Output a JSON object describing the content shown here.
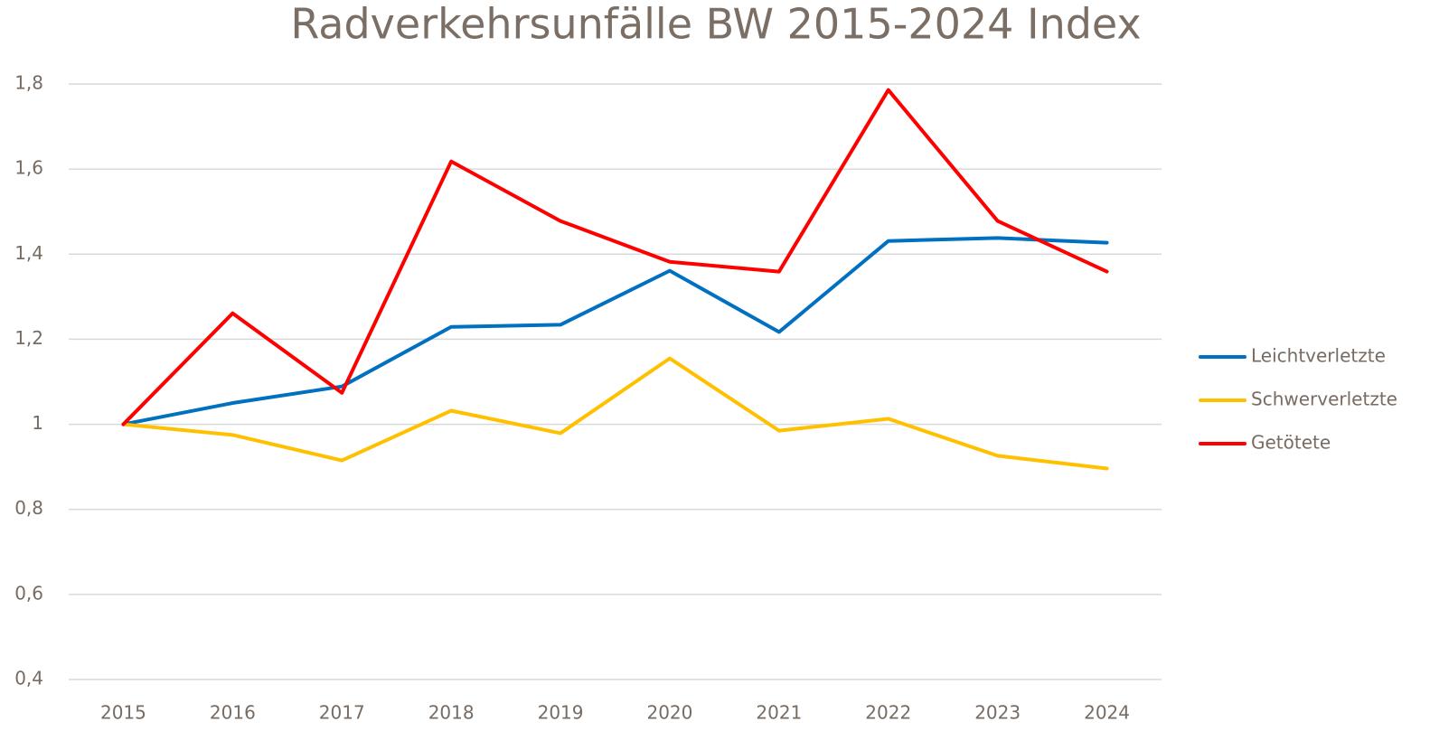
{
  "chart_data": {
    "type": "line",
    "title": "Radverkehrsunfälle BW 2015-2024 Index",
    "categories": [
      "2015",
      "2016",
      "2017",
      "2018",
      "2019",
      "2020",
      "2021",
      "2022",
      "2023",
      "2024"
    ],
    "series": [
      {
        "name": "Leichtverletzte",
        "color": "#0070c0",
        "values": [
          1.0,
          1.05,
          1.089,
          1.229,
          1.234,
          1.361,
          1.217,
          1.431,
          1.438,
          1.427
        ]
      },
      {
        "name": "Schwerverletzte",
        "color": "#ffc000",
        "values": [
          1.0,
          0.975,
          0.915,
          1.032,
          0.979,
          1.155,
          0.985,
          1.013,
          0.926,
          0.896
        ]
      },
      {
        "name": "Getötete",
        "color": "#ff0000",
        "values": [
          1.0,
          1.261,
          1.074,
          1.618,
          1.478,
          1.382,
          1.359,
          1.786,
          1.478,
          1.359
        ]
      }
    ],
    "ylim": [
      0.4,
      1.8
    ],
    "yticks": [
      {
        "value": 0.4,
        "label": "0,4"
      },
      {
        "value": 0.6,
        "label": "0,6"
      },
      {
        "value": 0.8,
        "label": "0,8"
      },
      1,
      {
        "value": 1.2,
        "label": "1,2"
      },
      {
        "value": 1.4,
        "label": "1,4"
      },
      {
        "value": 1.6,
        "label": "1,6"
      },
      {
        "value": 1.8,
        "label": "1,8"
      }
    ],
    "grid": true,
    "legend": "right"
  }
}
